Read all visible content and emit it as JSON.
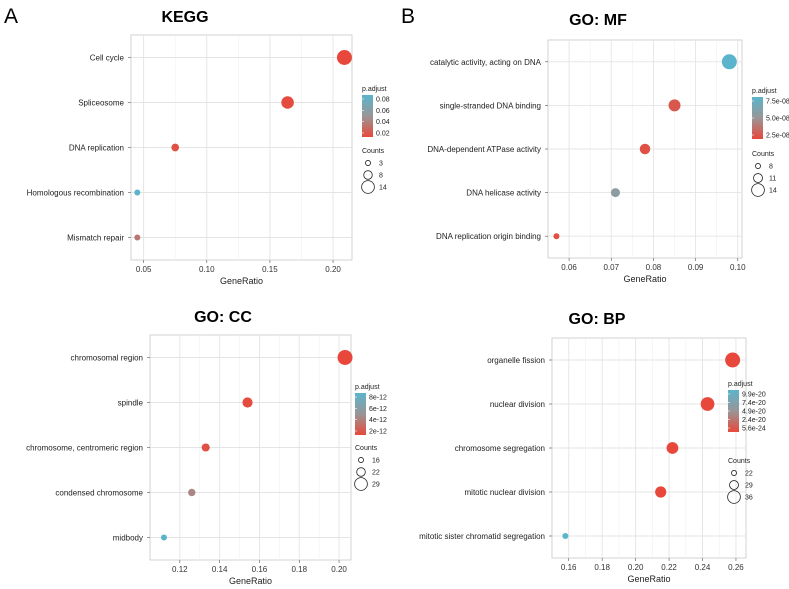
{
  "panel_labels": [
    "A",
    "B"
  ],
  "chart_data": [
    {
      "type": "scatter",
      "title": "KEGG",
      "xlabel": "GeneRatio",
      "xlim": [
        0.04,
        0.215
      ],
      "xticks": [
        0.05,
        0.1,
        0.15,
        0.2
      ],
      "xtick_labels": [
        "0.05",
        "0.10",
        "0.15",
        "0.20"
      ],
      "categories": [
        "Cell cycle",
        "Spliceosome",
        "DNA replication",
        "Homologous recombination",
        "Mismatch repair"
      ],
      "gene_ratio": [
        0.209,
        0.164,
        0.075,
        0.045,
        0.045
      ],
      "counts": [
        14,
        11,
        5,
        3,
        3
      ],
      "color_frac": [
        0.0,
        0.02,
        0.05,
        1.0,
        0.3
      ],
      "colorbar_title": "p.adjust",
      "colorbar_labels": [
        "0.08",
        "0.06",
        "0.04",
        "0.02"
      ],
      "size_title": "Counts",
      "size_labels": [
        "3",
        "8",
        "14"
      ],
      "size_values": [
        3,
        8,
        14
      ],
      "count_range": [
        3,
        14
      ]
    },
    {
      "type": "scatter",
      "title": "GO: MF",
      "xlabel": "GeneRatio",
      "xlim": [
        0.055,
        0.101
      ],
      "xticks": [
        0.06,
        0.07,
        0.08,
        0.09,
        0.1
      ],
      "xtick_labels": [
        "0.06",
        "0.07",
        "0.08",
        "0.09",
        "0.10"
      ],
      "categories": [
        "catalytic activity, acting on DNA",
        "single-stranded DNA binding",
        "DNA-dependent ATPase activity",
        "DNA helicase activity",
        "DNA replication origin binding"
      ],
      "gene_ratio": [
        0.098,
        0.085,
        0.078,
        0.071,
        0.057
      ],
      "counts": [
        14,
        12,
        11,
        10,
        8
      ],
      "color_frac": [
        1.0,
        0.1,
        0.05,
        0.6,
        0.05
      ],
      "colorbar_title": "p.adjust",
      "colorbar_labels": [
        "7.5e-08",
        "5.0e-08",
        "2.5e-08"
      ],
      "size_title": "Counts",
      "size_labels": [
        "8",
        "11",
        "14"
      ],
      "size_values": [
        8,
        11,
        14
      ],
      "count_range": [
        8,
        14
      ]
    },
    {
      "type": "scatter",
      "title": "GO: CC",
      "xlabel": "GeneRatio",
      "xlim": [
        0.105,
        0.206
      ],
      "xticks": [
        0.12,
        0.14,
        0.16,
        0.18,
        0.2
      ],
      "xtick_labels": [
        "0.12",
        "0.14",
        "0.16",
        "0.18",
        "0.20"
      ],
      "categories": [
        "chromosomal region",
        "spindle",
        "chromosome, centromeric region",
        "condensed chromosome",
        "midbody"
      ],
      "gene_ratio": [
        0.203,
        0.154,
        0.133,
        0.126,
        0.112
      ],
      "counts": [
        29,
        22,
        19,
        18,
        16
      ],
      "color_frac": [
        0.0,
        0.02,
        0.05,
        0.4,
        1.0
      ],
      "colorbar_title": "p.adjust",
      "colorbar_labels": [
        "8e-12",
        "6e-12",
        "4e-12",
        "2e-12"
      ],
      "size_title": "Counts",
      "size_labels": [
        "16",
        "22",
        "29"
      ],
      "size_values": [
        16,
        22,
        29
      ],
      "count_range": [
        16,
        29
      ]
    },
    {
      "type": "scatter",
      "title": "GO: BP",
      "xlabel": "GeneRatio",
      "xlim": [
        0.15,
        0.266
      ],
      "xticks": [
        0.16,
        0.18,
        0.2,
        0.22,
        0.24,
        0.26
      ],
      "xtick_labels": [
        "0.16",
        "0.18",
        "0.20",
        "0.22",
        "0.24",
        "0.26"
      ],
      "categories": [
        "organelle fission",
        "nuclear division",
        "chromosome segregation",
        "mitotic nuclear division",
        "mitotic sister chromatid segregation"
      ],
      "gene_ratio": [
        0.258,
        0.243,
        0.222,
        0.215,
        0.158
      ],
      "counts": [
        36,
        34,
        31,
        30,
        22
      ],
      "color_frac": [
        0.0,
        0.0,
        0.0,
        0.0,
        1.0
      ],
      "colorbar_title": "p.adjust",
      "colorbar_labels": [
        "9.9e-20",
        "7.4e-20",
        "4.9e-20",
        "2.4e-20",
        "5.6e-24"
      ],
      "size_title": "Counts",
      "size_labels": [
        "22",
        "29",
        "36"
      ],
      "size_values": [
        22,
        29,
        36
      ],
      "count_range": [
        22,
        36
      ]
    }
  ]
}
